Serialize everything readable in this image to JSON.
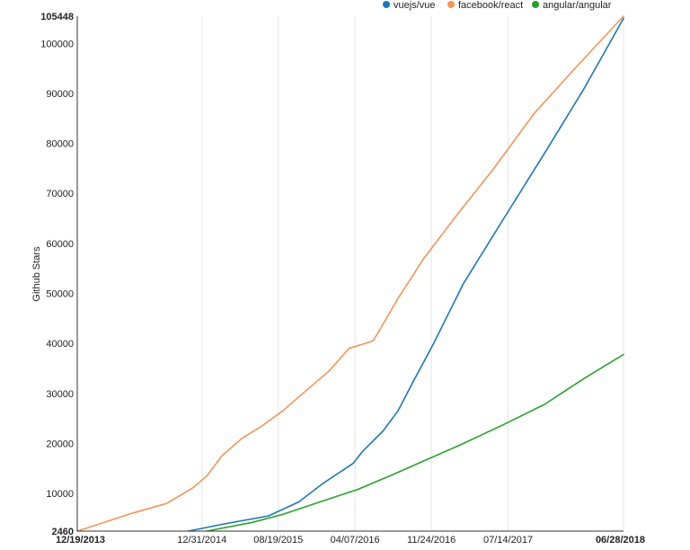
{
  "chart_data": {
    "type": "line",
    "ylabel": "Github Stars",
    "ylim": [
      2460,
      105448
    ],
    "xlim": [
      "2013-12-19",
      "2018-06-28"
    ],
    "y_ticks": [
      {
        "value": 105448,
        "label": "105448",
        "bold": true
      },
      {
        "value": 100000,
        "label": "100000"
      },
      {
        "value": 90000,
        "label": "90000"
      },
      {
        "value": 80000,
        "label": "80000"
      },
      {
        "value": 70000,
        "label": "70000"
      },
      {
        "value": 60000,
        "label": "60000"
      },
      {
        "value": 50000,
        "label": "50000"
      },
      {
        "value": 40000,
        "label": "40000"
      },
      {
        "value": 30000,
        "label": "30000"
      },
      {
        "value": 20000,
        "label": "20000"
      },
      {
        "value": 10000,
        "label": "10000"
      },
      {
        "value": 2460,
        "label": "2460",
        "bold": true
      }
    ],
    "x_ticks": [
      {
        "value": "2013-12-19",
        "label": "12/19/2013",
        "bold": true
      },
      {
        "value": "2014-12-31",
        "label": "12/31/2014"
      },
      {
        "value": "2015-08-19",
        "label": "08/19/2015"
      },
      {
        "value": "2016-04-07",
        "label": "04/07/2016"
      },
      {
        "value": "2016-11-24",
        "label": "11/24/2016"
      },
      {
        "value": "2017-07-14",
        "label": "07/14/2017"
      },
      {
        "value": "2018-06-28",
        "label": "06/28/2018",
        "bold": true
      }
    ],
    "grid": true,
    "legend_position": "top-right",
    "series": [
      {
        "name": "vuejs/vue",
        "color": "#1f77b4",
        "points": [
          [
            "2014-11-20",
            2460
          ],
          [
            "2015-03-01",
            3800
          ],
          [
            "2015-07-20",
            5500
          ],
          [
            "2015-10-20",
            8300
          ],
          [
            "2016-01-01",
            12000
          ],
          [
            "2016-04-01",
            16000
          ],
          [
            "2016-05-01",
            18500
          ],
          [
            "2016-07-01",
            22500
          ],
          [
            "2016-08-15",
            26500
          ],
          [
            "2016-10-01",
            32500
          ],
          [
            "2016-12-01",
            40000
          ],
          [
            "2017-03-01",
            52000
          ],
          [
            "2017-07-01",
            65000
          ],
          [
            "2017-11-01",
            78000
          ],
          [
            "2018-03-01",
            91000
          ],
          [
            "2018-06-28",
            105000
          ]
        ]
      },
      {
        "name": "facebook/react",
        "color": "#f2955a",
        "points": [
          [
            "2013-12-19",
            2460
          ],
          [
            "2014-06-01",
            6000
          ],
          [
            "2014-09-15",
            8000
          ],
          [
            "2014-12-01",
            11000
          ],
          [
            "2015-01-15",
            13500
          ],
          [
            "2015-03-01",
            17500
          ],
          [
            "2015-05-01",
            21000
          ],
          [
            "2015-07-01",
            23500
          ],
          [
            "2015-09-01",
            26500
          ],
          [
            "2015-11-01",
            30000
          ],
          [
            "2016-01-20",
            34500
          ],
          [
            "2016-03-20",
            39000
          ],
          [
            "2016-06-01",
            40500
          ],
          [
            "2016-08-15",
            49000
          ],
          [
            "2016-11-01",
            57000
          ],
          [
            "2017-02-01",
            65000
          ],
          [
            "2017-06-01",
            75000
          ],
          [
            "2017-10-01",
            86000
          ],
          [
            "2018-02-01",
            95000
          ],
          [
            "2018-06-28",
            105448
          ]
        ]
      },
      {
        "name": "angular/angular",
        "color": "#2ca02c",
        "points": [
          [
            "2015-01-15",
            2460
          ],
          [
            "2015-06-01",
            4200
          ],
          [
            "2015-09-01",
            5800
          ],
          [
            "2016-01-01",
            8500
          ],
          [
            "2016-04-15",
            10800
          ],
          [
            "2016-08-01",
            13800
          ],
          [
            "2016-11-01",
            16500
          ],
          [
            "2017-03-01",
            20000
          ],
          [
            "2017-07-01",
            23800
          ],
          [
            "2017-11-01",
            27800
          ],
          [
            "2018-03-01",
            33000
          ],
          [
            "2018-06-28",
            37800
          ]
        ]
      }
    ]
  }
}
